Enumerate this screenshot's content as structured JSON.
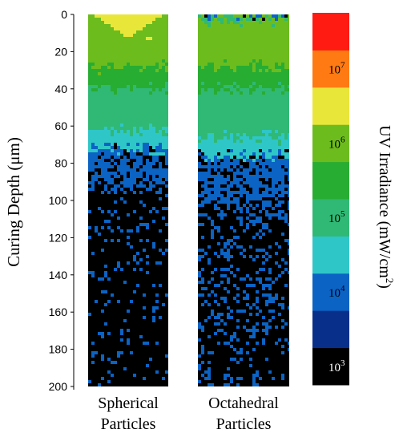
{
  "chart_data": {
    "type": "heatmap",
    "ylabel": "Curing Depth (μm)",
    "y_ticks": [
      0,
      20,
      40,
      60,
      80,
      100,
      120,
      140,
      160,
      180,
      200
    ],
    "ylim": [
      0,
      200
    ],
    "y_inverted": true,
    "panels": [
      {
        "name": "spherical",
        "label_line1": "Spherical",
        "label_line2": "Particles",
        "depth_bands_um": [
          {
            "from": 0,
            "to": 10,
            "level": 7
          },
          {
            "from": 10,
            "to": 28,
            "level": 6
          },
          {
            "from": 28,
            "to": 40,
            "level": 5
          },
          {
            "from": 40,
            "to": 62,
            "level": 4
          },
          {
            "from": 62,
            "to": 72,
            "level": 3
          },
          {
            "from": 72,
            "to": 92,
            "level": 2
          },
          {
            "from": 92,
            "to": 200,
            "level": 0
          }
        ]
      },
      {
        "name": "octahedral",
        "label_line1": "Octahedral",
        "label_line2": "Particles",
        "depth_bands_um": [
          {
            "from": 0,
            "to": 3,
            "level": 4
          },
          {
            "from": 3,
            "to": 28,
            "level": 6
          },
          {
            "from": 28,
            "to": 40,
            "level": 5
          },
          {
            "from": 40,
            "to": 66,
            "level": 4
          },
          {
            "from": 66,
            "to": 76,
            "level": 3
          },
          {
            "from": 76,
            "to": 100,
            "level": 2
          },
          {
            "from": 100,
            "to": 200,
            "level": 0
          }
        ]
      }
    ],
    "colorbar": {
      "label_main": "UV Irradiance (mW/cm",
      "label_sup": "2",
      "label_close": ")",
      "colors": [
        "#000000",
        "#08308a",
        "#0b63c4",
        "#2fc6c8",
        "#30b974",
        "#28ad33",
        "#6cbc1e",
        "#e9e63a",
        "#ff7a12",
        "#ff1a12"
      ],
      "ticks": [
        {
          "base": "10",
          "exp": "7",
          "index": 8
        },
        {
          "base": "10",
          "exp": "6",
          "index": 6
        },
        {
          "base": "10",
          "exp": "5",
          "index": 4
        },
        {
          "base": "10",
          "exp": "4",
          "index": 2
        },
        {
          "base": "10",
          "exp": "3",
          "index": 0
        }
      ]
    }
  }
}
